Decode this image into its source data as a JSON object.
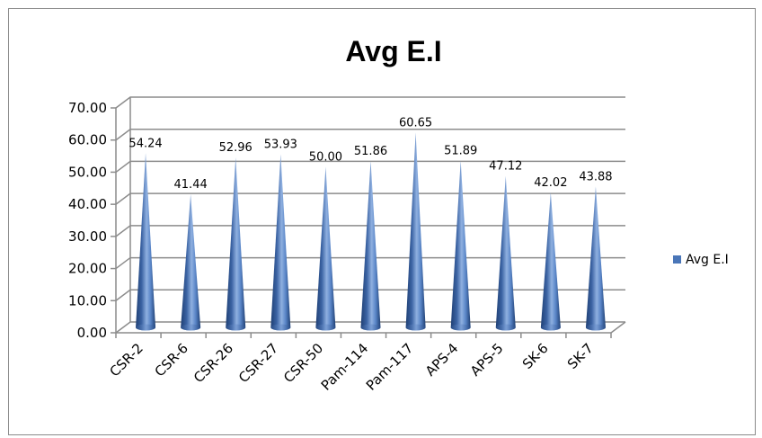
{
  "chart_data": {
    "type": "bar",
    "shape": "cone",
    "title": "Avg E.I",
    "xlabel": "",
    "ylabel": "",
    "categories": [
      "CSR-2",
      "CSR-6",
      "CSR-26",
      "CSR-27",
      "CSR-50",
      "Pam-114",
      "Pam-117",
      "APS-4",
      "APS-5",
      "SK-6",
      "SK-7"
    ],
    "series": [
      {
        "name": "Avg E.I",
        "values": [
          54.24,
          41.44,
          52.96,
          53.93,
          50.0,
          51.86,
          60.65,
          51.89,
          47.12,
          42.02,
          43.88
        ],
        "value_labels": [
          "54.24",
          "41.44",
          "52.96",
          "53.93",
          "50.00",
          "51.86",
          "60.65",
          "51.89",
          "47.12",
          "42.02",
          "43.88"
        ],
        "color": "#4a76b8"
      }
    ],
    "ylim": [
      0,
      70
    ],
    "yticks": [
      "0.00",
      "10.00",
      "20.00",
      "30.00",
      "40.00",
      "50.00",
      "60.00",
      "70.00"
    ],
    "grid": true,
    "legend_position": "right"
  }
}
